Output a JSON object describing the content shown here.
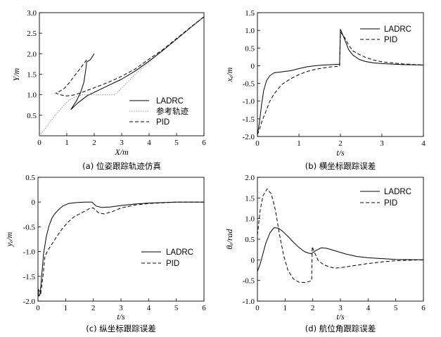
{
  "colors": {
    "ladrc": "#000000",
    "pid": "#000000",
    "ref": "#808080"
  },
  "chart_data": [
    {
      "type": "line",
      "caption": "(a) 位姿跟踪轨迹仿真",
      "xlabel": "X/m",
      "ylabel": "Y/m",
      "xlim": [
        0,
        6
      ],
      "ylim": [
        0,
        3.0
      ],
      "xticks": [
        0,
        1,
        2,
        3,
        4,
        5,
        6
      ],
      "xtick_labels": [
        "0",
        "1",
        "2",
        "3",
        "4",
        "5",
        "6"
      ],
      "yticks": [
        0.5,
        1.0,
        1.5,
        2.0,
        2.5,
        3.0
      ],
      "ytick_labels": [
        "0.5",
        "1.0",
        "1.5",
        "2.0",
        "2.5",
        "3.0"
      ],
      "legend_position": "lower-right",
      "series": [
        {
          "name": "LADRC",
          "style": "solid",
          "points": [
            [
              2.0,
              2.0
            ],
            [
              1.85,
              1.85
            ],
            [
              1.78,
              1.82
            ],
            [
              1.72,
              1.8
            ],
            [
              1.7,
              1.65
            ],
            [
              1.62,
              1.3
            ],
            [
              1.5,
              1.05
            ],
            [
              1.35,
              0.85
            ],
            [
              1.15,
              0.64
            ],
            [
              1.4,
              0.8
            ],
            [
              1.75,
              0.98
            ],
            [
              2.0,
              1.06
            ],
            [
              2.5,
              1.22
            ],
            [
              3.0,
              1.38
            ],
            [
              3.5,
              1.58
            ],
            [
              4.0,
              1.82
            ],
            [
              4.5,
              2.08
            ],
            [
              5.0,
              2.35
            ],
            [
              5.5,
              2.63
            ],
            [
              6.0,
              2.9
            ]
          ]
        },
        {
          "name": "参考轨迹",
          "style": "dotted",
          "points": [
            [
              0.0,
              0.0
            ],
            [
              0.3,
              0.26
            ],
            [
              0.6,
              0.52
            ],
            [
              0.9,
              0.75
            ],
            [
              1.05,
              0.85
            ],
            [
              1.3,
              0.95
            ],
            [
              1.55,
              1.0
            ],
            [
              2.0,
              1.0
            ],
            [
              2.4,
              1.0
            ],
            [
              2.75,
              1.0
            ],
            [
              3.5,
              1.5
            ],
            [
              4.0,
              1.8
            ],
            [
              4.5,
              2.07
            ],
            [
              5.0,
              2.35
            ],
            [
              5.5,
              2.63
            ],
            [
              6.0,
              2.9
            ]
          ]
        },
        {
          "name": "PID",
          "style": "dashed",
          "points": [
            [
              1.72,
              1.85
            ],
            [
              1.5,
              1.65
            ],
            [
              1.3,
              1.48
            ],
            [
              1.1,
              1.3
            ],
            [
              0.9,
              1.15
            ],
            [
              0.7,
              1.07
            ],
            [
              0.6,
              1.04
            ],
            [
              0.75,
              1.0
            ],
            [
              1.0,
              0.97
            ],
            [
              1.3,
              1.0
            ],
            [
              1.6,
              1.07
            ],
            [
              2.0,
              1.17
            ],
            [
              2.5,
              1.3
            ],
            [
              3.0,
              1.45
            ],
            [
              3.5,
              1.63
            ],
            [
              4.0,
              1.87
            ],
            [
              4.5,
              2.1
            ],
            [
              5.0,
              2.37
            ],
            [
              5.5,
              2.64
            ],
            [
              6.0,
              2.9
            ]
          ]
        }
      ]
    },
    {
      "type": "line",
      "caption": "(b) 横坐标跟踪误差",
      "xlabel": "t/s",
      "ylabel": "xₑ/m",
      "xlim": [
        0,
        4
      ],
      "ylim": [
        -2.0,
        1.5
      ],
      "xticks": [
        0,
        1,
        2,
        3,
        4
      ],
      "xtick_labels": [
        "0",
        "1",
        "2",
        "3",
        "4"
      ],
      "yticks": [
        -2.0,
        -1.5,
        -1.0,
        -0.5,
        0,
        0.5,
        1.0,
        1.5
      ],
      "ytick_labels": [
        "-2.0",
        "-1.5",
        "-1.0",
        "-0.5",
        "0",
        "0.5",
        "1.0",
        "1.5"
      ],
      "legend_position": "top-right",
      "series": [
        {
          "name": "LADRC",
          "style": "solid",
          "points": [
            [
              0.0,
              -1.95
            ],
            [
              0.05,
              -1.6
            ],
            [
              0.1,
              -1.1
            ],
            [
              0.15,
              -0.7
            ],
            [
              0.22,
              -0.42
            ],
            [
              0.3,
              -0.28
            ],
            [
              0.4,
              -0.2
            ],
            [
              0.6,
              -0.17
            ],
            [
              0.8,
              -0.14
            ],
            [
              1.0,
              -0.08
            ],
            [
              1.2,
              -0.03
            ],
            [
              1.4,
              0.0
            ],
            [
              1.6,
              0.02
            ],
            [
              1.8,
              0.03
            ],
            [
              1.98,
              0.04
            ],
            [
              2.0,
              1.03
            ],
            [
              2.1,
              0.75
            ],
            [
              2.2,
              0.45
            ],
            [
              2.3,
              0.3
            ],
            [
              2.45,
              0.18
            ],
            [
              2.6,
              0.12
            ],
            [
              2.8,
              0.08
            ],
            [
              3.0,
              0.06
            ],
            [
              3.5,
              0.03
            ],
            [
              4.0,
              0.02
            ]
          ]
        },
        {
          "name": "PID",
          "style": "dashed",
          "points": [
            [
              0.0,
              -1.95
            ],
            [
              0.05,
              -1.8
            ],
            [
              0.1,
              -1.6
            ],
            [
              0.2,
              -1.3
            ],
            [
              0.3,
              -1.0
            ],
            [
              0.4,
              -0.8
            ],
            [
              0.5,
              -0.65
            ],
            [
              0.6,
              -0.52
            ],
            [
              0.8,
              -0.37
            ],
            [
              1.0,
              -0.25
            ],
            [
              1.2,
              -0.16
            ],
            [
              1.4,
              -0.1
            ],
            [
              1.6,
              -0.06
            ],
            [
              1.8,
              -0.03
            ],
            [
              1.98,
              -0.02
            ],
            [
              2.0,
              0.95
            ],
            [
              2.1,
              0.8
            ],
            [
              2.2,
              0.58
            ],
            [
              2.3,
              0.42
            ],
            [
              2.45,
              0.32
            ],
            [
              2.6,
              0.24
            ],
            [
              2.8,
              0.16
            ],
            [
              3.0,
              0.11
            ],
            [
              3.5,
              0.05
            ],
            [
              4.0,
              0.02
            ]
          ]
        }
      ]
    },
    {
      "type": "line",
      "caption": "(c) 纵坐标跟踪误差",
      "xlabel": "t/s",
      "ylabel": "yₑ/m",
      "xlim": [
        0,
        6
      ],
      "ylim": [
        -2.0,
        0.5
      ],
      "xticks": [
        0,
        1,
        2,
        3,
        4,
        5,
        6
      ],
      "xtick_labels": [
        "0",
        "1",
        "2",
        "3",
        "4",
        "5",
        "6"
      ],
      "yticks": [
        -2.0,
        -1.5,
        -1.0,
        -0.5,
        0,
        0.5
      ],
      "ytick_labels": [
        "-2.0",
        "-1.5",
        "-1.0",
        "-0.5",
        "0",
        "0.5"
      ],
      "legend_position": "lower-right",
      "series": [
        {
          "name": "LADRC",
          "style": "solid",
          "points": [
            [
              0.0,
              -1.75
            ],
            [
              0.03,
              -1.9
            ],
            [
              0.07,
              -1.87
            ],
            [
              0.12,
              -1.6
            ],
            [
              0.2,
              -1.05
            ],
            [
              0.3,
              -0.7
            ],
            [
              0.4,
              -0.48
            ],
            [
              0.5,
              -0.33
            ],
            [
              0.6,
              -0.24
            ],
            [
              0.75,
              -0.15
            ],
            [
              0.9,
              -0.08
            ],
            [
              1.1,
              -0.03
            ],
            [
              1.4,
              -0.01
            ],
            [
              1.7,
              0.0
            ],
            [
              1.95,
              0.0
            ],
            [
              2.1,
              -0.08
            ],
            [
              2.3,
              -0.11
            ],
            [
              2.6,
              -0.1
            ],
            [
              3.0,
              -0.07
            ],
            [
              3.5,
              -0.04
            ],
            [
              4.0,
              -0.02
            ],
            [
              5.0,
              0.0
            ],
            [
              6.0,
              0.0
            ]
          ]
        },
        {
          "name": "PID",
          "style": "dashed",
          "points": [
            [
              0.0,
              -1.75
            ],
            [
              0.1,
              -1.85
            ],
            [
              0.18,
              -1.5
            ],
            [
              0.25,
              -1.1
            ],
            [
              0.35,
              -0.98
            ],
            [
              0.5,
              -0.85
            ],
            [
              0.7,
              -0.68
            ],
            [
              0.9,
              -0.52
            ],
            [
              1.1,
              -0.4
            ],
            [
              1.3,
              -0.3
            ],
            [
              1.5,
              -0.24
            ],
            [
              1.7,
              -0.18
            ],
            [
              1.9,
              -0.12
            ],
            [
              2.0,
              -0.12
            ],
            [
              2.2,
              -0.22
            ],
            [
              2.4,
              -0.24
            ],
            [
              2.7,
              -0.19
            ],
            [
              3.0,
              -0.12
            ],
            [
              3.5,
              -0.06
            ],
            [
              4.0,
              -0.03
            ],
            [
              5.0,
              0.0
            ],
            [
              6.0,
              0.0
            ]
          ]
        }
      ]
    },
    {
      "type": "line",
      "caption": "(d) 航位角跟踪误差",
      "xlabel": "t/s",
      "ylabel": "θₑ/rad",
      "xlim": [
        0,
        6
      ],
      "ylim": [
        -1.0,
        2.0
      ],
      "xticks": [
        0,
        1,
        2,
        3,
        4,
        5,
        6
      ],
      "xtick_labels": [
        "0",
        "1",
        "2",
        "3",
        "4",
        "5",
        "6"
      ],
      "yticks": [
        -1.0,
        -0.5,
        0,
        0.5,
        1.0,
        1.5,
        2.0
      ],
      "ytick_labels": [
        "-1.0",
        "-0.5",
        "0",
        "0.5",
        "1.0",
        "1.5",
        "2.0"
      ],
      "legend_position": "top-right",
      "series": [
        {
          "name": "LADRC",
          "style": "solid",
          "points": [
            [
              0.0,
              -0.28
            ],
            [
              0.1,
              -0.1
            ],
            [
              0.2,
              0.15
            ],
            [
              0.3,
              0.4
            ],
            [
              0.45,
              0.65
            ],
            [
              0.6,
              0.78
            ],
            [
              0.75,
              0.77
            ],
            [
              0.9,
              0.7
            ],
            [
              1.1,
              0.57
            ],
            [
              1.3,
              0.43
            ],
            [
              1.5,
              0.3
            ],
            [
              1.7,
              0.2
            ],
            [
              1.85,
              0.16
            ],
            [
              1.95,
              0.15
            ],
            [
              2.1,
              0.22
            ],
            [
              2.3,
              0.29
            ],
            [
              2.5,
              0.28
            ],
            [
              2.8,
              0.22
            ],
            [
              3.2,
              0.14
            ],
            [
              3.6,
              0.08
            ],
            [
              4.0,
              0.05
            ],
            [
              5.0,
              0.01
            ],
            [
              6.0,
              0.0
            ]
          ]
        },
        {
          "name": "PID",
          "style": "dashed",
          "points": [
            [
              0.0,
              0.6
            ],
            [
              0.1,
              1.2
            ],
            [
              0.2,
              1.55
            ],
            [
              0.35,
              1.72
            ],
            [
              0.5,
              1.6
            ],
            [
              0.65,
              1.2
            ],
            [
              0.8,
              0.6
            ],
            [
              0.95,
              0.1
            ],
            [
              1.1,
              -0.25
            ],
            [
              1.3,
              -0.46
            ],
            [
              1.5,
              -0.54
            ],
            [
              1.7,
              -0.55
            ],
            [
              1.9,
              -0.52
            ],
            [
              1.96,
              -0.5
            ],
            [
              1.98,
              0.32
            ],
            [
              2.05,
              0.2
            ],
            [
              2.2,
              -0.02
            ],
            [
              2.4,
              -0.12
            ],
            [
              2.6,
              -0.17
            ],
            [
              2.8,
              -0.2
            ],
            [
              3.0,
              -0.19
            ],
            [
              3.5,
              -0.14
            ],
            [
              4.0,
              -0.09
            ],
            [
              4.5,
              -0.05
            ],
            [
              5.0,
              -0.02
            ],
            [
              6.0,
              0.0
            ]
          ]
        }
      ]
    }
  ]
}
